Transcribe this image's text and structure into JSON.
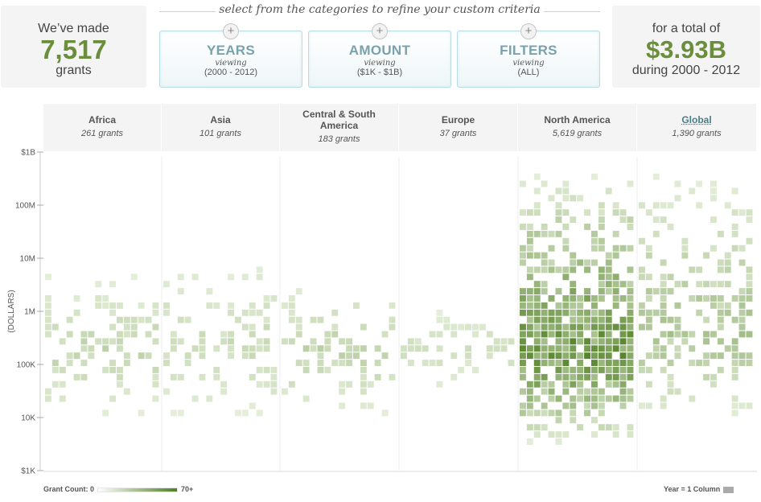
{
  "summary": {
    "left_prefix": "We’ve made",
    "grant_count": "7,517",
    "left_suffix": "grants",
    "right_prefix": "for a total of",
    "total_amount": "$3.93B",
    "right_suffix": "during 2000 - 2012"
  },
  "selector": {
    "title": "select from the categories to refine your custom criteria",
    "plus_symbol": "+",
    "buttons": [
      {
        "label": "YEARS",
        "sub": "viewing",
        "value": "(2000 - 2012)"
      },
      {
        "label": "AMOUNT",
        "sub": "viewing",
        "value": "($1K - $1B)"
      },
      {
        "label": "FILTERS",
        "sub": "viewing",
        "value": "(ALL)"
      }
    ]
  },
  "regions": [
    {
      "name": "Africa",
      "count": "261 grants"
    },
    {
      "name": "Asia",
      "count": "101 grants"
    },
    {
      "name": "Central & South America",
      "count": "183 grants"
    },
    {
      "name": "Europe",
      "count": "37 grants"
    },
    {
      "name": "North America",
      "count": "5,619 grants"
    },
    {
      "name": "Global",
      "count": "1,390 grants"
    }
  ],
  "legend": {
    "count_label": "Grant Count: 0",
    "count_max": "70+",
    "year_label": "Year = 1 Column"
  },
  "colors": {
    "accent": "#6b8e3d",
    "cell_max": "#4f7f22",
    "button_text": "#7aa2ad"
  },
  "chart_data": {
    "type": "heatmap",
    "title": "",
    "xlabel": "",
    "ylabel": "(DOLLARS)",
    "y_scale": "log",
    "y_ticks": [
      "$1K",
      "10K",
      "100K",
      "1M",
      "10M",
      "100M",
      "$1B"
    ],
    "y_range": [
      1000,
      1000000000
    ],
    "regions": [
      "Africa",
      "Asia",
      "Central & South America",
      "Europe",
      "North America",
      "Global"
    ],
    "region_counts": [
      261,
      101,
      183,
      37,
      5619,
      1390
    ],
    "years": [
      2000,
      2012
    ],
    "color_scale": {
      "min": 0,
      "max_label": "70+"
    },
    "distribution": [
      {
        "region": "Africa",
        "amount_range": [
          10000,
          5000000
        ],
        "peak_amount": 150000,
        "max_intensity": 0.28
      },
      {
        "region": "Asia",
        "amount_range": [
          10000,
          10000000
        ],
        "peak_amount": 200000,
        "max_intensity": 0.22
      },
      {
        "region": "Central & South America",
        "amount_range": [
          10000,
          3000000
        ],
        "peak_amount": 200000,
        "max_intensity": 0.3
      },
      {
        "region": "Europe",
        "amount_range": [
          30000,
          1000000
        ],
        "peak_amount": 200000,
        "max_intensity": 0.18
      },
      {
        "region": "North America",
        "amount_range": [
          3000,
          400000000
        ],
        "peak_amount": 150000,
        "max_intensity": 1.0
      },
      {
        "region": "Global",
        "amount_range": [
          10000,
          400000000
        ],
        "peak_amount": 300000,
        "max_intensity": 0.45
      }
    ]
  }
}
